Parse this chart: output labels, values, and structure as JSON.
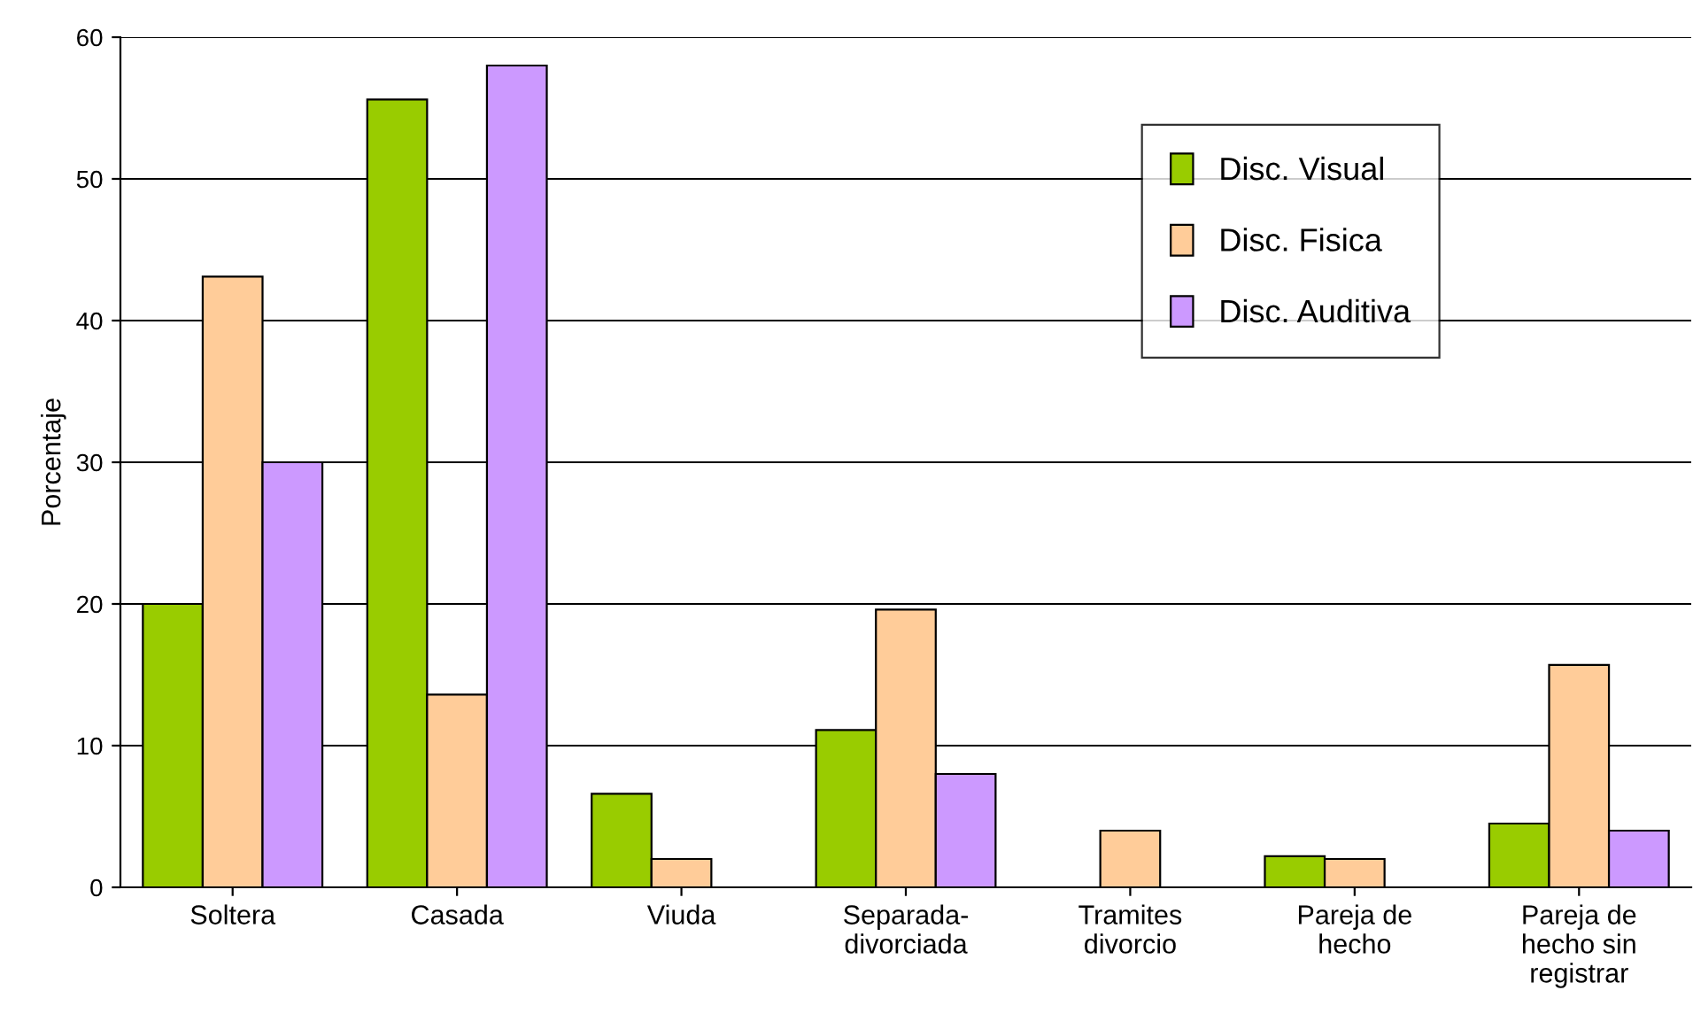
{
  "chart_data": {
    "type": "bar",
    "ylabel": "Porcentaje",
    "categories": [
      "Soltera",
      "Casada",
      "Viuda",
      "Separada-\ndivorciada",
      "Tramites\ndivorcio",
      "Pareja de\nhecho",
      "Pareja de\nhecho sin\nregistrar"
    ],
    "series": [
      {
        "name": "Disc. Visual",
        "color": "#99cc00",
        "values": [
          20,
          55.6,
          6.6,
          11.1,
          0,
          2.2,
          4.5
        ]
      },
      {
        "name": "Disc. Fisica",
        "color": "#ffcc99",
        "values": [
          43.1,
          13.6,
          2,
          19.6,
          4,
          2,
          15.7
        ]
      },
      {
        "name": "Disc. Auditiva",
        "color": "#cc99ff",
        "values": [
          30,
          58,
          0,
          8,
          0,
          0,
          4
        ]
      }
    ],
    "ylim": [
      0,
      60
    ],
    "yticks": [
      0,
      10,
      20,
      30,
      40,
      50,
      60
    ],
    "grid": "y",
    "legend": "top right"
  }
}
